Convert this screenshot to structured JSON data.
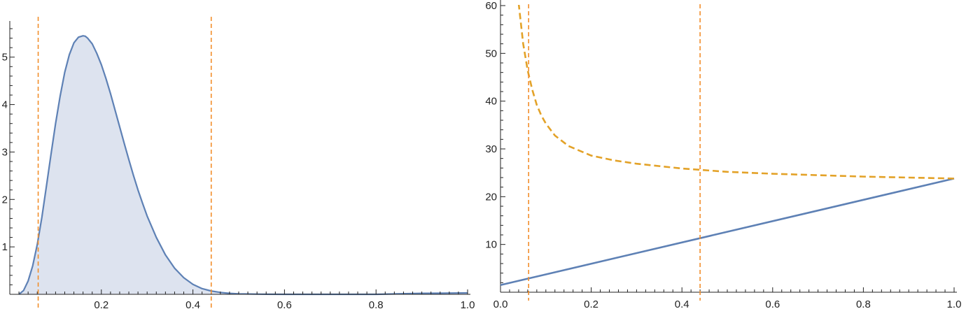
{
  "colors": {
    "curve": "#5e81b5",
    "fill": "#dde3ef",
    "dashed_lines": "#f28e2b",
    "dashed_curve": "#e3a228",
    "axis": "#222222"
  },
  "chart_data": [
    {
      "type": "area",
      "title": "",
      "xlabel": "",
      "ylabel": "",
      "xlim": [
        0,
        1
      ],
      "ylim": [
        0,
        5.6
      ],
      "x_ticks": [
        "0.2",
        "0.4",
        "0.6",
        "0.8",
        "1.0"
      ],
      "y_ticks": [
        "1",
        "2",
        "3",
        "4",
        "5"
      ],
      "series": [
        {
          "style": "filled-curve",
          "x": [
            0.02,
            0.03,
            0.04,
            0.05,
            0.06,
            0.07,
            0.08,
            0.09,
            0.1,
            0.11,
            0.12,
            0.13,
            0.14,
            0.15,
            0.16,
            0.165,
            0.17,
            0.18,
            0.19,
            0.2,
            0.21,
            0.22,
            0.23,
            0.24,
            0.25,
            0.26,
            0.27,
            0.28,
            0.29,
            0.3,
            0.32,
            0.34,
            0.36,
            0.38,
            0.4,
            0.42,
            0.44,
            0.46,
            0.48,
            0.5,
            0.55,
            0.6,
            0.7,
            0.8,
            0.9,
            1.0
          ],
          "y": [
            0.0,
            0.08,
            0.28,
            0.6,
            1.05,
            1.62,
            2.28,
            2.95,
            3.6,
            4.18,
            4.68,
            5.05,
            5.3,
            5.42,
            5.45,
            5.44,
            5.4,
            5.28,
            5.08,
            4.84,
            4.55,
            4.23,
            3.88,
            3.53,
            3.18,
            2.84,
            2.51,
            2.2,
            1.92,
            1.65,
            1.2,
            0.83,
            0.55,
            0.35,
            0.21,
            0.12,
            0.07,
            0.04,
            0.02,
            0.01,
            0.003,
            0.0,
            0.0,
            0.0,
            0.02,
            0.03
          ]
        }
      ],
      "vertical_dashed_lines_x": [
        0.062,
        0.44
      ]
    },
    {
      "type": "line",
      "title": "",
      "xlabel": "",
      "ylabel": "",
      "xlim": [
        0,
        1
      ],
      "ylim": [
        0,
        60
      ],
      "x_ticks": [
        "0.0",
        "0.2",
        "0.4",
        "0.6",
        "0.8",
        "1.0"
      ],
      "y_ticks": [
        "10",
        "20",
        "30",
        "40",
        "50",
        "60"
      ],
      "series": [
        {
          "style": "solid",
          "x": [
            0.0,
            1.0
          ],
          "y": [
            1.5,
            23.8
          ]
        },
        {
          "style": "dashed",
          "x": [
            0.04,
            0.05,
            0.06,
            0.07,
            0.08,
            0.09,
            0.1,
            0.12,
            0.15,
            0.2,
            0.25,
            0.3,
            0.4,
            0.5,
            0.6,
            0.7,
            0.8,
            0.9,
            1.0
          ],
          "y": [
            60.5,
            52.0,
            46.4,
            42.4,
            39.2,
            37.0,
            35.3,
            32.8,
            30.6,
            28.6,
            27.6,
            26.9,
            25.9,
            25.2,
            24.8,
            24.5,
            24.2,
            24.0,
            23.8
          ]
        }
      ],
      "vertical_dashed_lines_x": [
        0.062,
        0.44
      ]
    }
  ]
}
